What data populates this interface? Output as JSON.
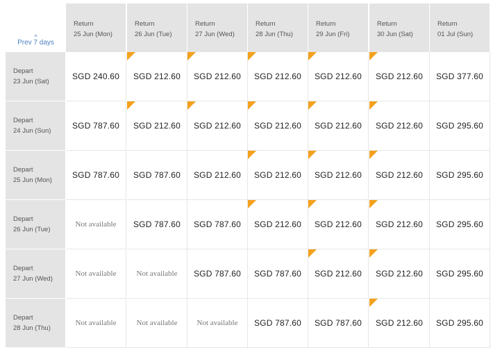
{
  "prev_label": "Prev 7 days",
  "return_label": "Return",
  "depart_label": "Depart",
  "accent_color": "#f4a11d",
  "return_dates": [
    "25 Jun (Mon)",
    "26 Jun (Tue)",
    "27 Jun (Wed)",
    "28 Jun (Thu)",
    "29 Jun (Fri)",
    "30 Jun (Sat)",
    "01 Jul (Sun)"
  ],
  "rows": [
    {
      "depart": "23 Jun (Sat)",
      "cells": [
        {
          "text": "SGD 240.60"
        },
        {
          "text": "SGD 212.60",
          "lowest": true
        },
        {
          "text": "SGD 212.60",
          "lowest": true
        },
        {
          "text": "SGD 212.60",
          "lowest": true
        },
        {
          "text": "SGD 212.60",
          "lowest": true
        },
        {
          "text": "SGD 212.60",
          "lowest": true
        },
        {
          "text": "SGD 377.60"
        }
      ]
    },
    {
      "depart": "24 Jun (Sun)",
      "cells": [
        {
          "text": "SGD 787.60"
        },
        {
          "text": "SGD 212.60",
          "lowest": true
        },
        {
          "text": "SGD 212.60",
          "lowest": true
        },
        {
          "text": "SGD 212.60",
          "lowest": true
        },
        {
          "text": "SGD 212.60",
          "lowest": true
        },
        {
          "text": "SGD 212.60",
          "lowest": true
        },
        {
          "text": "SGD 295.60"
        }
      ]
    },
    {
      "depart": "25 Jun (Mon)",
      "cells": [
        {
          "text": "SGD 787.60"
        },
        {
          "text": "SGD 787.60"
        },
        {
          "text": "SGD 212.60"
        },
        {
          "text": "SGD 212.60",
          "lowest": true
        },
        {
          "text": "SGD 212.60",
          "lowest": true
        },
        {
          "text": "SGD 212.60",
          "lowest": true
        },
        {
          "text": "SGD 295.60"
        }
      ]
    },
    {
      "depart": "26 Jun (Tue)",
      "cells": [
        {
          "text": "Not available",
          "na": true
        },
        {
          "text": "SGD 787.60"
        },
        {
          "text": "SGD 787.60"
        },
        {
          "text": "SGD 212.60",
          "lowest": true
        },
        {
          "text": "SGD 212.60",
          "lowest": true
        },
        {
          "text": "SGD 212.60",
          "lowest": true
        },
        {
          "text": "SGD 295.60"
        }
      ]
    },
    {
      "depart": "27 Jun (Wed)",
      "cells": [
        {
          "text": "Not available",
          "na": true
        },
        {
          "text": "Not available",
          "na": true
        },
        {
          "text": "SGD 787.60"
        },
        {
          "text": "SGD 787.60"
        },
        {
          "text": "SGD 212.60",
          "lowest": true
        },
        {
          "text": "SGD 212.60",
          "lowest": true
        },
        {
          "text": "SGD 295.60"
        }
      ]
    },
    {
      "depart": "28 Jun (Thu)",
      "cells": [
        {
          "text": "Not available",
          "na": true
        },
        {
          "text": "Not available",
          "na": true
        },
        {
          "text": "Not available",
          "na": true
        },
        {
          "text": "SGD 787.60"
        },
        {
          "text": "SGD 787.60"
        },
        {
          "text": "SGD 212.60",
          "lowest": true
        },
        {
          "text": "SGD 295.60"
        }
      ]
    }
  ]
}
